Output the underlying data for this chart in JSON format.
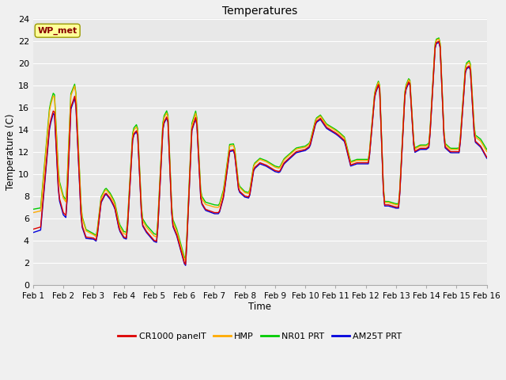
{
  "title": "Temperatures",
  "xlabel": "Time",
  "ylabel": "Temperature (C)",
  "ylim": [
    0,
    24
  ],
  "xlim": [
    0,
    15
  ],
  "xtick_labels": [
    "Feb 1",
    "Feb 2",
    "Feb 3",
    "Feb 4",
    "Feb 5",
    "Feb 6",
    "Feb 7",
    "Feb 8",
    "Feb 9",
    "Feb 10",
    "Feb 11",
    "Feb 12",
    "Feb 13",
    "Feb 14",
    "Feb 15",
    "Feb 16"
  ],
  "ytick_values": [
    0,
    2,
    4,
    6,
    8,
    10,
    12,
    14,
    16,
    18,
    20,
    22,
    24
  ],
  "background_color": "#f0f0f0",
  "plot_bg_color": "#e8e8e8",
  "grid_color": "#ffffff",
  "legend_labels": [
    "CR1000 panelT",
    "HMP",
    "NR01 PRT",
    "AM25T PRT"
  ],
  "legend_colors": [
    "#dd0000",
    "#ffaa00",
    "#00cc00",
    "#0000dd"
  ],
  "station_label": "WP_met",
  "station_label_color": "#880000",
  "station_label_bg": "#ffff99",
  "line_width": 1.0,
  "keypoints_cr1000": [
    [
      0.0,
      5.0
    ],
    [
      0.25,
      5.2
    ],
    [
      0.55,
      14.5
    ],
    [
      0.7,
      16.0
    ],
    [
      0.85,
      8.0
    ],
    [
      1.0,
      6.5
    ],
    [
      1.1,
      6.2
    ],
    [
      1.25,
      16.0
    ],
    [
      1.4,
      17.2
    ],
    [
      1.6,
      5.5
    ],
    [
      1.75,
      4.3
    ],
    [
      2.0,
      4.2
    ],
    [
      2.1,
      4.0
    ],
    [
      2.25,
      7.5
    ],
    [
      2.4,
      8.3
    ],
    [
      2.55,
      7.8
    ],
    [
      2.7,
      7.0
    ],
    [
      2.85,
      5.0
    ],
    [
      3.0,
      4.3
    ],
    [
      3.1,
      4.2
    ],
    [
      3.3,
      13.5
    ],
    [
      3.45,
      14.0
    ],
    [
      3.6,
      5.5
    ],
    [
      3.75,
      4.8
    ],
    [
      4.0,
      4.0
    ],
    [
      4.1,
      3.9
    ],
    [
      4.3,
      14.5
    ],
    [
      4.45,
      15.3
    ],
    [
      4.6,
      5.5
    ],
    [
      4.75,
      4.5
    ],
    [
      5.0,
      2.0
    ],
    [
      5.05,
      1.8
    ],
    [
      5.25,
      14.0
    ],
    [
      5.4,
      15.3
    ],
    [
      5.55,
      7.5
    ],
    [
      5.7,
      6.8
    ],
    [
      6.0,
      6.5
    ],
    [
      6.15,
      6.5
    ],
    [
      6.3,
      8.0
    ],
    [
      6.5,
      12.1
    ],
    [
      6.65,
      12.2
    ],
    [
      6.8,
      8.5
    ],
    [
      7.0,
      8.0
    ],
    [
      7.15,
      7.9
    ],
    [
      7.3,
      10.5
    ],
    [
      7.5,
      11.0
    ],
    [
      7.7,
      10.8
    ],
    [
      8.0,
      10.3
    ],
    [
      8.15,
      10.2
    ],
    [
      8.3,
      11.0
    ],
    [
      8.5,
      11.5
    ],
    [
      8.7,
      12.0
    ],
    [
      9.0,
      12.2
    ],
    [
      9.15,
      12.5
    ],
    [
      9.35,
      14.7
    ],
    [
      9.5,
      15.0
    ],
    [
      9.7,
      14.2
    ],
    [
      10.0,
      13.7
    ],
    [
      10.1,
      13.5
    ],
    [
      10.3,
      13.0
    ],
    [
      10.5,
      10.8
    ],
    [
      10.7,
      11.0
    ],
    [
      11.0,
      11.0
    ],
    [
      11.1,
      11.0
    ],
    [
      11.3,
      17.2
    ],
    [
      11.45,
      18.3
    ],
    [
      11.6,
      7.2
    ],
    [
      11.75,
      7.2
    ],
    [
      12.0,
      7.0
    ],
    [
      12.1,
      7.0
    ],
    [
      12.3,
      17.5
    ],
    [
      12.45,
      18.5
    ],
    [
      12.6,
      12.0
    ],
    [
      12.8,
      12.3
    ],
    [
      13.0,
      12.3
    ],
    [
      13.1,
      12.5
    ],
    [
      13.3,
      21.8
    ],
    [
      13.45,
      22.0
    ],
    [
      13.6,
      12.5
    ],
    [
      13.8,
      12.0
    ],
    [
      14.0,
      12.0
    ],
    [
      14.1,
      12.0
    ],
    [
      14.3,
      19.5
    ],
    [
      14.45,
      19.8
    ],
    [
      14.6,
      13.0
    ],
    [
      14.8,
      12.5
    ],
    [
      15.0,
      11.5
    ]
  ],
  "hmp_offsets": [
    [
      0,
      1.5
    ],
    [
      1,
      1.3
    ],
    [
      2,
      0.3
    ],
    [
      3,
      0.3
    ],
    [
      4,
      0.4
    ],
    [
      5,
      0.3
    ],
    [
      6,
      0.5
    ],
    [
      7,
      0.3
    ],
    [
      8,
      0.3
    ],
    [
      9,
      0.2
    ],
    [
      10,
      0.2
    ],
    [
      11,
      0.2
    ],
    [
      12,
      0.2
    ],
    [
      13,
      0.2
    ],
    [
      14,
      0.2
    ],
    [
      15,
      0.5
    ]
  ],
  "nr01_offsets": [
    [
      0,
      1.8
    ],
    [
      1,
      1.5
    ],
    [
      2,
      0.4
    ],
    [
      3,
      0.5
    ],
    [
      4,
      0.6
    ],
    [
      5,
      0.5
    ],
    [
      6,
      0.7
    ],
    [
      7,
      0.4
    ],
    [
      8,
      0.4
    ],
    [
      9,
      0.3
    ],
    [
      10,
      0.3
    ],
    [
      11,
      0.3
    ],
    [
      12,
      0.3
    ],
    [
      13,
      0.3
    ],
    [
      14,
      0.3
    ],
    [
      15,
      0.7
    ]
  ],
  "am25t_offsets": [
    [
      0,
      -0.3
    ],
    [
      1,
      -0.2
    ],
    [
      2,
      -0.1
    ],
    [
      3,
      -0.1
    ],
    [
      4,
      -0.1
    ],
    [
      5,
      -0.1
    ],
    [
      6,
      -0.1
    ],
    [
      7,
      -0.1
    ],
    [
      8,
      -0.1
    ],
    [
      9,
      -0.1
    ],
    [
      10,
      -0.1
    ],
    [
      11,
      -0.1
    ],
    [
      12,
      -0.1
    ],
    [
      13,
      -0.1
    ],
    [
      14,
      -0.1
    ],
    [
      15,
      -0.1
    ]
  ]
}
